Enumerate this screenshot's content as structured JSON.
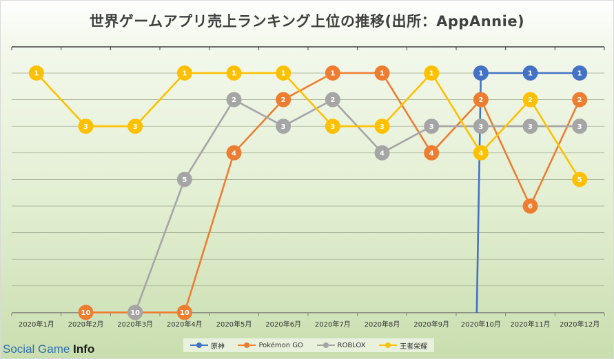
{
  "chart_data": {
    "type": "line",
    "title": "世界ゲームアプリ売上ランキング上位の推移(出所：AppAnnie)",
    "categories": [
      "2020年1月",
      "2020年2月",
      "2020年3月",
      "2020年4月",
      "2020年5月",
      "2020年6月",
      "2020年7月",
      "2020年8月",
      "2020年9月",
      "2020年10月",
      "2020年11月",
      "2020年12月"
    ],
    "y_axis": {
      "reversed": true,
      "min": 1,
      "max": 10,
      "gridlines": true
    },
    "series": [
      {
        "name": "原神",
        "color": "#4472C4",
        "values": [
          null,
          null,
          null,
          null,
          null,
          null,
          null,
          null,
          null,
          1,
          1,
          1
        ],
        "drop_from_axis_at": 9
      },
      {
        "name": "Pokémon GO",
        "color": "#ED7D31",
        "values": [
          null,
          10,
          10,
          10,
          4,
          2,
          1,
          1,
          4,
          2,
          6,
          2
        ]
      },
      {
        "name": "ROBLOX",
        "color": "#A5A5A5",
        "values": [
          null,
          null,
          10,
          5,
          2,
          3,
          2,
          4,
          3,
          3,
          3,
          3
        ],
        "drop_from_axis_at": 2
      },
      {
        "name": "王者栄耀",
        "color": "#FFC000",
        "values": [
          1,
          3,
          3,
          1,
          1,
          1,
          3,
          3,
          1,
          4,
          2,
          5
        ]
      }
    ],
    "legend_position": "bottom"
  },
  "watermark": {
    "part1": "Social Game ",
    "part2": "Info"
  }
}
